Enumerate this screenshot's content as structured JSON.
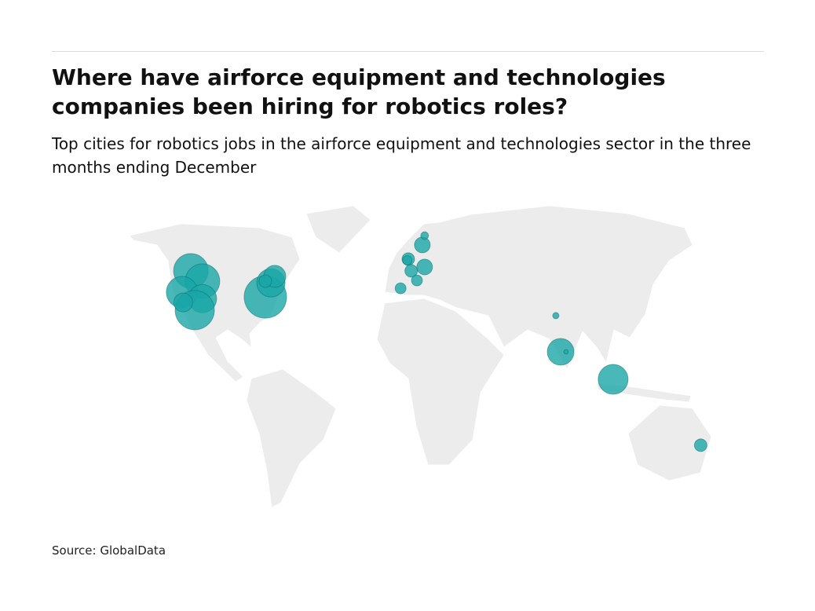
{
  "chart_data": {
    "type": "bubble-map",
    "title": "Where have airforce equipment and technologies companies been hiring for robotics roles?",
    "subtitle": "Top cities for robotics jobs in the airforce equipment and technologies sector in the three months ending December",
    "source": "Source: GlobalData",
    "color": "#1aa6a6",
    "lon": [
      -113,
      -107,
      -117.6,
      -107,
      -111,
      -117,
      -74.3,
      -71.4,
      -69.4,
      -74.3,
      0,
      1.5,
      8.5,
      7.3,
      8.5,
      4.5,
      -4,
      -0.5,
      76.7,
      79.2,
      82,
      106.5,
      152
    ],
    "lat": [
      46.6,
      42.3,
      37.7,
      35,
      30.2,
      33.4,
      35.7,
      41.6,
      44.3,
      42.3,
      51.5,
      46.6,
      48.2,
      57.4,
      61.3,
      42.6,
      39.3,
      51,
      27.9,
      12.8,
      12.8,
      1.3,
      -26.2
    ],
    "values": [
      121,
      121,
      100,
      81,
      156,
      36,
      182,
      81,
      49,
      16,
      16,
      16,
      25,
      25,
      6,
      12,
      12,
      9,
      4,
      72,
      2,
      90,
      16
    ]
  }
}
